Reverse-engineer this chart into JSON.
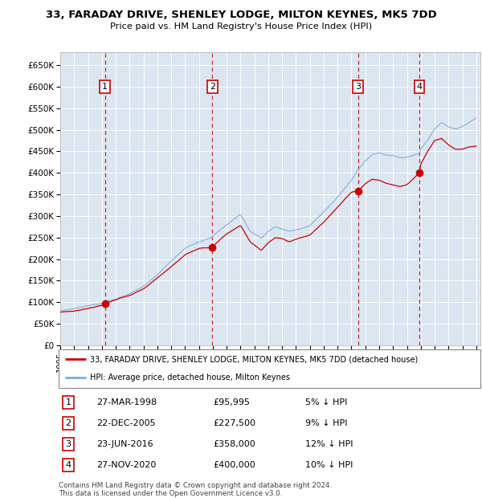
{
  "title": "33, FARADAY DRIVE, SHENLEY LODGE, MILTON KEYNES, MK5 7DD",
  "subtitle": "Price paid vs. HM Land Registry's House Price Index (HPI)",
  "y_ticks": [
    0,
    50000,
    100000,
    150000,
    200000,
    250000,
    300000,
    350000,
    400000,
    450000,
    500000,
    550000,
    600000,
    650000
  ],
  "y_tick_labels": [
    "£0",
    "£50K",
    "£100K",
    "£150K",
    "£200K",
    "£250K",
    "£300K",
    "£350K",
    "£400K",
    "£450K",
    "£500K",
    "£550K",
    "£600K",
    "£650K"
  ],
  "sale_color": "#cc0000",
  "hpi_color": "#7aaddc",
  "background_color": "#dce6f1",
  "legend_label_sale": "33, FARADAY DRIVE, SHENLEY LODGE, MILTON KEYNES, MK5 7DD (detached house)",
  "legend_label_hpi": "HPI: Average price, detached house, Milton Keynes",
  "sales": [
    {
      "date": 1998.23,
      "price": 95995,
      "label": "1"
    },
    {
      "date": 2005.97,
      "price": 227500,
      "label": "2"
    },
    {
      "date": 2016.47,
      "price": 358000,
      "label": "3"
    },
    {
      "date": 2020.9,
      "price": 400000,
      "label": "4"
    }
  ],
  "table_rows": [
    {
      "num": "1",
      "date": "27-MAR-1998",
      "price": "£95,995",
      "pct": "5% ↓ HPI"
    },
    {
      "num": "2",
      "date": "22-DEC-2005",
      "price": "£227,500",
      "pct": "9% ↓ HPI"
    },
    {
      "num": "3",
      "date": "23-JUN-2016",
      "price": "£358,000",
      "pct": "12% ↓ HPI"
    },
    {
      "num": "4",
      "date": "27-NOV-2020",
      "price": "£400,000",
      "pct": "10% ↓ HPI"
    }
  ],
  "footer": "Contains HM Land Registry data © Crown copyright and database right 2024.\nThis data is licensed under the Open Government Licence v3.0."
}
